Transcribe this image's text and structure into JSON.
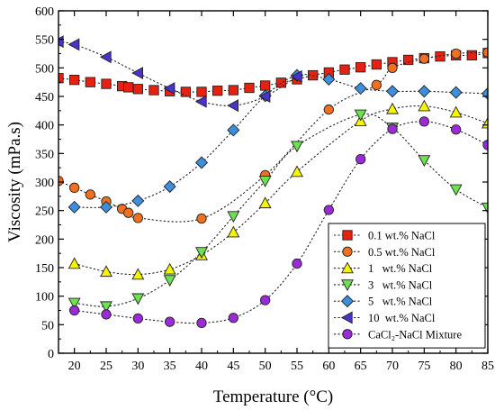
{
  "chart_data": {
    "type": "scatter",
    "xlabel": "Temperature (°C)",
    "ylabel": "Viscosity (mPa.s)",
    "xlim": [
      17.5,
      85
    ],
    "ylim": [
      0,
      600
    ],
    "xticks": [
      20,
      25,
      30,
      35,
      40,
      45,
      50,
      55,
      60,
      65,
      70,
      75,
      80,
      85
    ],
    "yticks": [
      0,
      50,
      100,
      150,
      200,
      250,
      300,
      350,
      400,
      450,
      500,
      550,
      600
    ],
    "legend_position": "bottom-right",
    "series": [
      {
        "name": "0.1 wt.% NaCl",
        "marker": "square",
        "color": "#e8200f",
        "x": [
          17.5,
          20,
          22.5,
          25,
          27.5,
          28.5,
          30,
          32.5,
          35,
          37.5,
          40,
          42.5,
          45,
          47.5,
          50,
          52.5,
          55,
          57.5,
          60,
          62.5,
          65,
          67.5,
          70,
          72.5,
          75,
          77.5,
          80,
          82.5,
          85
        ],
        "y": [
          482,
          479,
          475,
          472,
          468,
          466,
          463,
          461,
          459,
          458,
          458,
          460,
          461,
          465,
          469,
          474,
          480,
          487,
          492,
          497,
          501,
          506,
          510,
          514,
          517,
          520,
          522,
          522,
          526
        ]
      },
      {
        "name": "0.5 wt.% NaCl",
        "marker": "circle",
        "color": "#f07020",
        "x": [
          17.5,
          20,
          22.5,
          25,
          27.5,
          28.5,
          30,
          40,
          50,
          60,
          67.5,
          70,
          75,
          80,
          85
        ],
        "y": [
          302,
          290,
          278,
          266,
          253,
          246,
          237,
          236,
          312,
          427,
          470,
          500,
          516,
          525,
          527
        ]
      },
      {
        "name": "1   wt.% NaCl",
        "marker": "triangle-up",
        "color": "#f5f500",
        "x": [
          20,
          25,
          30,
          35,
          40,
          45,
          50,
          55,
          65,
          70,
          75,
          80,
          85
        ],
        "y": [
          157,
          143,
          138,
          147,
          172,
          212,
          263,
          318,
          407,
          428,
          433,
          422,
          403
        ]
      },
      {
        "name": "3   wt.% NaCl",
        "marker": "triangle-down",
        "color": "#6be24e",
        "x": [
          20,
          25,
          30,
          35,
          40,
          45,
          50,
          55,
          65,
          70,
          75,
          80,
          85
        ],
        "y": [
          88,
          82,
          96,
          128,
          177,
          240,
          302,
          363,
          418,
          395,
          338,
          287,
          255
        ]
      },
      {
        "name": "5   wt.% NaCl",
        "marker": "diamond",
        "color": "#3d8fdd",
        "x": [
          20,
          25,
          30,
          35,
          40,
          45,
          50,
          55,
          60,
          65,
          70,
          75,
          80,
          85
        ],
        "y": [
          256,
          256,
          267,
          292,
          334,
          391,
          451,
          487,
          480,
          464,
          459,
          459,
          457,
          455
        ]
      },
      {
        "name": "10  wt.% NaCl",
        "marker": "triangle-left",
        "color": "#4a33cc",
        "x": [
          17.5,
          20,
          25,
          30,
          35,
          40,
          45,
          50,
          55
        ],
        "y": [
          546,
          541,
          519,
          491,
          464,
          441,
          434,
          450,
          485
        ]
      },
      {
        "name": "CaCl₂-NaCl Mixture",
        "marker": "circle",
        "color": "#9b2bd6",
        "x": [
          20,
          25,
          30,
          35,
          40,
          45,
          50,
          55,
          60,
          65,
          70,
          75,
          80,
          85
        ],
        "y": [
          75,
          68,
          61,
          55,
          53,
          62,
          93,
          157,
          251,
          340,
          393,
          406,
          392,
          365
        ]
      }
    ]
  }
}
